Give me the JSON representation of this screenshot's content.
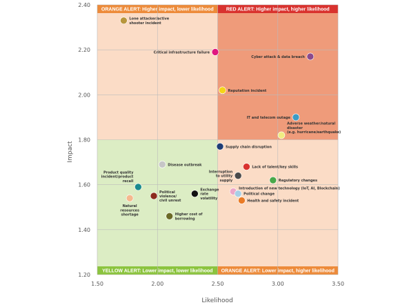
{
  "chart_data": {
    "type": "scatter",
    "xlabel": "Likelihood",
    "ylabel": "Impact",
    "xlim": [
      1.5,
      3.5
    ],
    "ylim": [
      1.2,
      2.4
    ],
    "xticks": [
      "1.50",
      "2.00",
      "2.50",
      "3.00",
      "3.50"
    ],
    "yticks": [
      "1.20",
      "1.40",
      "1.60",
      "1.80",
      "2.00",
      "2.20",
      "2.40"
    ],
    "grid": true,
    "quadrants": [
      {
        "name": "top-left",
        "label": "ORANGE ALERT: Higher impact, lower likelihood",
        "fill": "#fbdcc6",
        "banner": "#ed8b3a"
      },
      {
        "name": "top-right",
        "label": "RED ALERT: Higher impact, higher likelihood",
        "fill": "#ef9b7a",
        "banner": "#d9322e"
      },
      {
        "name": "bottom-left",
        "label": "YELLOW ALERT: Lower impact, lower likelihood",
        "fill": "#dcedc4",
        "banner": "#8cc43f"
      },
      {
        "name": "bottom-right",
        "label": "ORANGE ALERT: Lower impact, higher likelihood",
        "fill": "#fbdcc6",
        "banner": "#ed8b3a"
      }
    ],
    "points": [
      {
        "label": [
          "Lone attacker/active",
          "shooter incident"
        ],
        "x": 1.72,
        "y": 2.33,
        "color": "#b8963c",
        "pos": "right"
      },
      {
        "label": [
          "Critical infrastructure failure"
        ],
        "x": 2.48,
        "y": 2.19,
        "color": "#e0167f",
        "pos": "left"
      },
      {
        "label": [
          "Cyber attack & data breach"
        ],
        "x": 3.27,
        "y": 2.17,
        "color": "#8b4a8c",
        "pos": "left"
      },
      {
        "label": [
          "Reputation incident"
        ],
        "x": 2.54,
        "y": 2.02,
        "color": "#f5d418",
        "pos": "right"
      },
      {
        "label": [
          "IT and telecom outage"
        ],
        "x": 3.15,
        "y": 1.9,
        "color": "#3c9bc4",
        "pos": "left"
      },
      {
        "label": [
          "Adverse weather/natural",
          "disaster",
          "(e.g. hurricane/earthquake)"
        ],
        "x": 3.03,
        "y": 1.82,
        "color": "#f0ec82",
        "pos": "right-top"
      },
      {
        "label": [
          "Supply chain disruption"
        ],
        "x": 2.52,
        "y": 1.77,
        "color": "#1f3d75",
        "pos": "right"
      },
      {
        "label": [
          "Disease outbreak"
        ],
        "x": 2.04,
        "y": 1.69,
        "color": "#c6c6c6",
        "pos": "right"
      },
      {
        "label": [
          "Lack of talent/key skills"
        ],
        "x": 2.74,
        "y": 1.68,
        "color": "#d9322e",
        "pos": "right"
      },
      {
        "label": [
          "Interruption",
          "to utility",
          "supply"
        ],
        "x": 2.67,
        "y": 1.64,
        "color": "#4a4a4a",
        "pos": "left"
      },
      {
        "label": [
          "Regulatory changes"
        ],
        "x": 2.96,
        "y": 1.62,
        "color": "#48a84a",
        "pos": "right"
      },
      {
        "label": [
          "Product quality",
          "incident/product",
          "recall"
        ],
        "x": 1.84,
        "y": 1.59,
        "color": "#1a8a8e",
        "pos": "left-top"
      },
      {
        "label": [
          "Introduction of new technology (IoT, AI, Blockchain)"
        ],
        "x": 2.63,
        "y": 1.57,
        "color": "#eda7c8",
        "pos": "right-top"
      },
      {
        "label": [
          "Political change"
        ],
        "x": 2.67,
        "y": 1.56,
        "color": "#a8cfe6",
        "pos": "right"
      },
      {
        "label": [
          "Exchange",
          "rate",
          "volatility"
        ],
        "x": 2.31,
        "y": 1.56,
        "color": "#111111",
        "pos": "right"
      },
      {
        "label": [
          "Political",
          "violence/",
          "civil unrest"
        ],
        "x": 1.97,
        "y": 1.55,
        "color": "#8c2a1e",
        "pos": "right"
      },
      {
        "label": [
          "Natural",
          "resources",
          "shortage"
        ],
        "x": 1.77,
        "y": 1.54,
        "color": "#f5b98e",
        "pos": "below"
      },
      {
        "label": [
          "Health and safety incident"
        ],
        "x": 2.7,
        "y": 1.53,
        "color": "#ea7b26",
        "pos": "right"
      },
      {
        "label": [
          "Higher cost of",
          "borrowing"
        ],
        "x": 2.1,
        "y": 1.46,
        "color": "#6b6a26",
        "pos": "right"
      }
    ]
  }
}
